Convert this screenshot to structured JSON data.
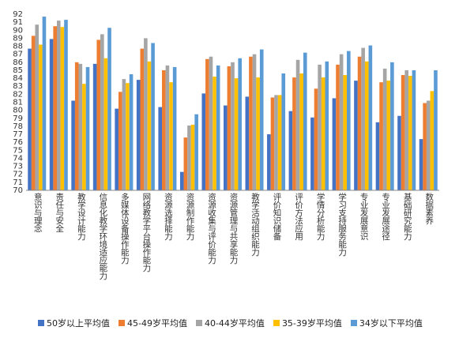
{
  "chart_data": {
    "type": "bar",
    "categories": [
      "意识与理念",
      "责任与安全",
      "教学设计能力",
      "信息化教学环境适应能力",
      "多媒体设备操作能力",
      "网络教学平台操作能力",
      "资源选择能力",
      "资源制作能力",
      "资源收集与评价能力",
      "资源管理与共享能力",
      "教学活动组织能力",
      "评价知识储备",
      "评价方法应用",
      "学情分析能力",
      "学习支持服务能力",
      "专业发展意识",
      "专业发展途径",
      "基础研究能力",
      "数据素养"
    ],
    "series": [
      {
        "name": "50岁以上平均值",
        "color": "#4472C4",
        "values": [
          87.7,
          88.9,
          81.2,
          85.8,
          80.2,
          83.8,
          80.4,
          72.3,
          82.1,
          80.6,
          81.7,
          77.0,
          79.9,
          79.1,
          81.5,
          83.7,
          78.5,
          79.3,
          76.4
        ]
      },
      {
        "name": "45-49岁平均值",
        "color": "#ED7D31",
        "values": [
          89.3,
          90.5,
          86.0,
          88.8,
          82.3,
          87.7,
          85.0,
          76.6,
          86.4,
          85.5,
          86.7,
          81.6,
          84.1,
          82.7,
          85.7,
          86.7,
          83.5,
          84.4,
          80.9
        ]
      },
      {
        "name": "40-44岁平均值",
        "color": "#A5A5A5",
        "values": [
          90.7,
          91.2,
          85.8,
          89.5,
          83.9,
          89.0,
          85.6,
          78.1,
          86.7,
          86.0,
          87.0,
          81.9,
          86.3,
          85.7,
          87.0,
          87.8,
          85.2,
          85.0,
          81.2
        ]
      },
      {
        "name": "35-39岁平均值",
        "color": "#FFC000",
        "values": [
          88.2,
          90.4,
          83.3,
          86.5,
          83.4,
          86.1,
          83.5,
          78.2,
          84.2,
          84.0,
          84.1,
          81.9,
          84.6,
          84.1,
          84.4,
          86.1,
          83.7,
          84.3,
          82.4
        ]
      },
      {
        "name": "34岁以下平均值",
        "color": "#5B9BD5",
        "values": [
          91.7,
          91.3,
          85.4,
          90.3,
          84.5,
          88.4,
          85.4,
          79.5,
          85.6,
          86.5,
          87.6,
          84.6,
          87.2,
          86.1,
          87.4,
          88.1,
          86.0,
          85.0,
          85.0
        ]
      }
    ],
    "ylim": [
      70,
      92
    ],
    "ytick_step": 1,
    "grid": false,
    "legend": "bottom"
  }
}
